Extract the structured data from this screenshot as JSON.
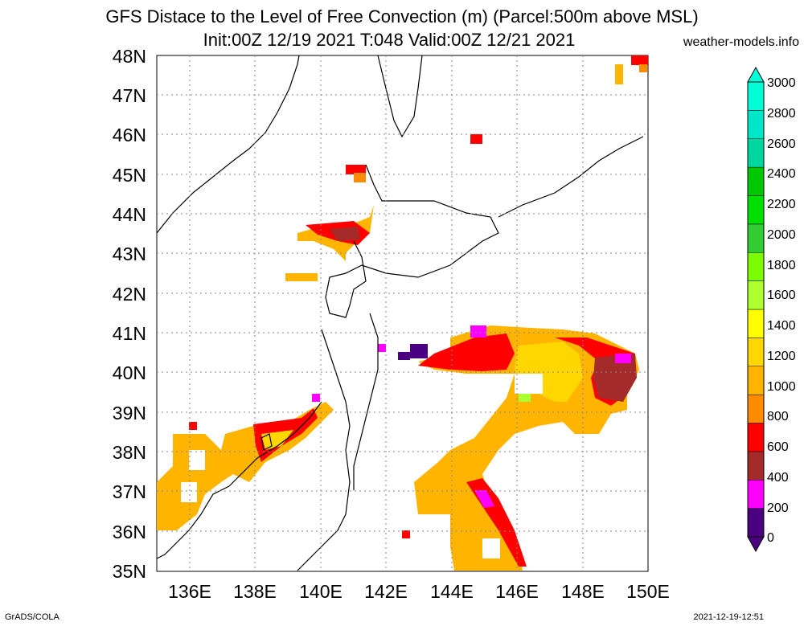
{
  "header": {
    "title_line1": "GFS Distace to the Level of Free Convection (m) (Parcel:500m above MSL)",
    "title_line2": "Init:00Z 12/19 2021 T:048 Valid:00Z 12/21 2021",
    "credit": "weather-models.info"
  },
  "footer": {
    "left": "GrADS/COLA",
    "right": "2021-12-19-12:51"
  },
  "map": {
    "lat_labels": [
      "48N",
      "47N",
      "46N",
      "45N",
      "44N",
      "43N",
      "42N",
      "41N",
      "40N",
      "39N",
      "38N",
      "37N",
      "36N",
      "35N"
    ],
    "lon_labels": [
      "136E",
      "138E",
      "140E",
      "142E",
      "144E",
      "146E",
      "148E",
      "150E"
    ],
    "lat_range": [
      35,
      48
    ],
    "lon_range": [
      135,
      150
    ],
    "grid": "dotted"
  },
  "colorbar": {
    "levels": [
      "0",
      "200",
      "400",
      "600",
      "800",
      "1000",
      "1200",
      "1400",
      "1600",
      "1800",
      "2000",
      "2200",
      "2400",
      "2600",
      "2800",
      "3000"
    ],
    "colors": [
      "#4b0082",
      "#ff00ff",
      "#a52a2a",
      "#ff0000",
      "#ff8c00",
      "#ffb400",
      "#ffd700",
      "#ffff00",
      "#adff2f",
      "#7cfc00",
      "#32cd32",
      "#00e000",
      "#00c800",
      "#00d7a0",
      "#00e6c8",
      "#00ffd7"
    ]
  }
}
